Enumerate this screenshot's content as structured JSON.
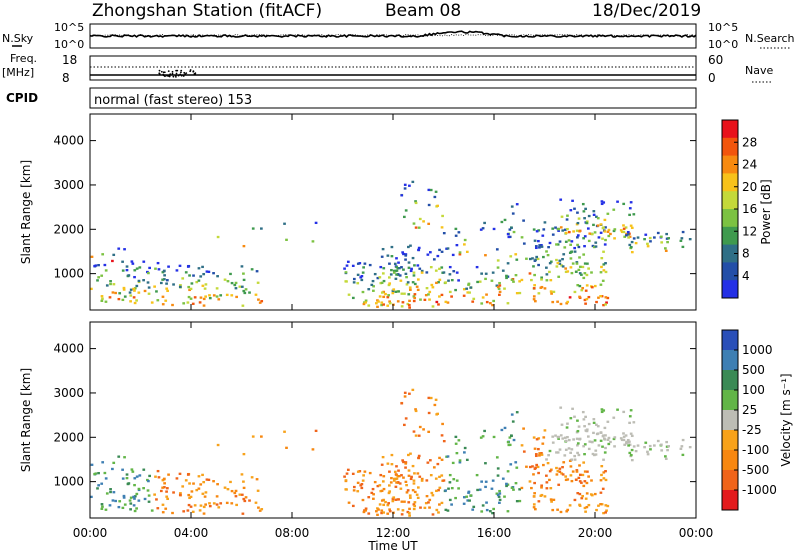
{
  "header": {
    "station": "Zhongshan Station (fitACF)",
    "beam": "Beam 08",
    "date": "18/Dec/2019"
  },
  "strip1": {
    "left_label": "N.Sky",
    "right_label": "N.Search",
    "left_top": "10^5",
    "left_bottom": "10^0",
    "right_top": "10^5",
    "right_bottom": "10^0"
  },
  "strip2": {
    "left_label_1": "Freq.",
    "left_label_2": "[MHz]",
    "right_label": "Nave",
    "left_top": "18",
    "left_bottom": "8",
    "right_top": "60",
    "right_bottom": "0"
  },
  "cpid": {
    "label": "CPID",
    "text": "normal (fast stereo) 153"
  },
  "power_scale": {
    "title": "Power [dB]",
    "ticks": [
      "28",
      "24",
      "20",
      "16",
      "12",
      "8",
      "4"
    ],
    "colors": [
      "#e8121b",
      "#f2550c",
      "#f78a10",
      "#f7c21a",
      "#c4d93a",
      "#7cc242",
      "#3f9a4e",
      "#2f6f86",
      "#234fa8",
      "#2430e6"
    ]
  },
  "velocity_scale": {
    "title": "Velocity [m s⁻¹]",
    "ticks": [
      "1000",
      "500",
      "100",
      "25",
      "-25",
      "-100",
      "-500",
      "-1000"
    ],
    "colors": [
      "#2a4fb8",
      "#3e7fb3",
      "#3a8a55",
      "#62b547",
      "#bdbdb5",
      "#f7a21a",
      "#f7870f",
      "#f0641a",
      "#e31a1c"
    ]
  },
  "chart_data": [
    {
      "type": "heatmap",
      "title": "Power",
      "xlabel": "",
      "ylabel": "Slant Range [km]",
      "colorbar_label": "Power [dB]",
      "x_ticks": [
        "00:00",
        "04:00",
        "08:00",
        "12:00",
        "16:00",
        "20:00",
        "00:00"
      ],
      "y_ticks": [
        "1000",
        "2000",
        "3000",
        "4000"
      ],
      "ylim": [
        180,
        4600
      ]
    },
    {
      "type": "heatmap",
      "title": "Velocity",
      "xlabel": "Time UT",
      "ylabel": "Slant Range [km]",
      "colorbar_label": "Velocity [m s⁻¹]",
      "x_ticks": [
        "00:00",
        "04:00",
        "08:00",
        "12:00",
        "16:00",
        "20:00",
        "00:00"
      ],
      "y_ticks": [
        "1000",
        "2000",
        "3000",
        "4000"
      ],
      "ylim": [
        180,
        4600
      ]
    }
  ]
}
